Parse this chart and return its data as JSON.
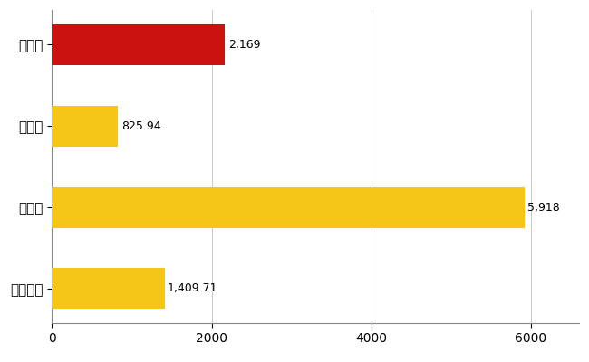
{
  "categories": [
    "全国平均",
    "県最大",
    "県平均",
    "一関市"
  ],
  "values": [
    1409.71,
    5918,
    825.94,
    2169
  ],
  "bar_colors": [
    "#F5C518",
    "#F5C518",
    "#F5C518",
    "#CC1111"
  ],
  "value_labels": [
    "1,409.71",
    "5,918",
    "825.94",
    "2,169"
  ],
  "xlim": [
    0,
    6600
  ],
  "xticks": [
    0,
    2000,
    4000,
    6000
  ],
  "background_color": "#FFFFFF",
  "grid_color": "#CCCCCC",
  "label_fontsize": 11,
  "value_fontsize": 9,
  "bar_height": 0.5
}
